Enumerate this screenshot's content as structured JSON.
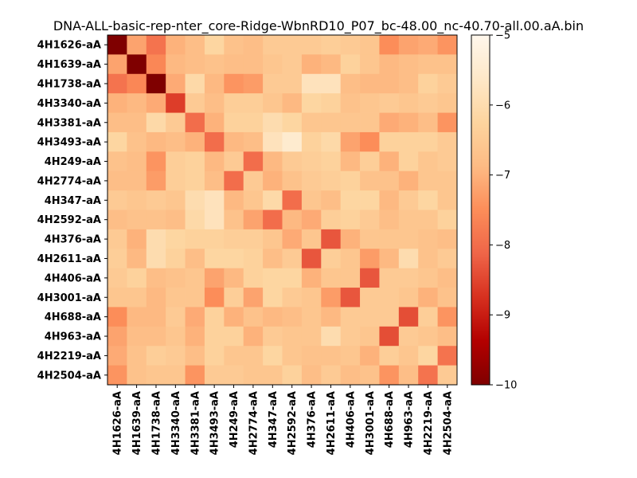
{
  "chart_data": {
    "type": "heatmap",
    "title": "DNA-ALL-basic-rep-nter_core-Ridge-WbnRD10_P07_bc-48.00_nc-40.70-all.00.aA.bin",
    "xlabel": "",
    "ylabel": "",
    "labels": [
      "4H1626-aA",
      "4H1639-aA",
      "4H1738-aA",
      "4H3340-aA",
      "4H3381-aA",
      "4H3493-aA",
      "4H249-aA",
      "4H2774-aA",
      "4H347-aA",
      "4H2592-aA",
      "4H376-aA",
      "4H2611-aA",
      "4H406-aA",
      "4H3001-aA",
      "4H688-aA",
      "4H963-aA",
      "4H2219-aA",
      "4H2504-aA"
    ],
    "colorbar": {
      "vmin": -10,
      "vmax": -5,
      "ticks": [
        -10,
        -9,
        -8,
        -7,
        -6,
        -5
      ],
      "colormap": "OrRd_r"
    },
    "values": [
      [
        -10.0,
        -7.2,
        -7.9,
        -7.0,
        -6.8,
        -6.2,
        -6.7,
        -6.8,
        -6.5,
        -6.5,
        -6.5,
        -6.4,
        -6.5,
        -6.6,
        -7.5,
        -7.2,
        -7.1,
        -7.4
      ],
      [
        -7.2,
        -10.0,
        -7.6,
        -6.9,
        -6.8,
        -6.7,
        -6.8,
        -6.8,
        -6.6,
        -6.5,
        -7.0,
        -6.9,
        -6.3,
        -6.6,
        -6.9,
        -6.8,
        -6.7,
        -6.7
      ],
      [
        -7.9,
        -7.6,
        -10.0,
        -7.1,
        -6.1,
        -6.9,
        -7.4,
        -7.3,
        -6.5,
        -6.5,
        -5.8,
        -5.8,
        -6.8,
        -6.9,
        -6.9,
        -6.8,
        -6.3,
        -6.5
      ],
      [
        -7.0,
        -6.9,
        -7.1,
        -8.6,
        -6.5,
        -6.8,
        -6.4,
        -6.4,
        -6.6,
        -6.9,
        -6.2,
        -6.3,
        -6.7,
        -6.6,
        -6.5,
        -6.6,
        -6.5,
        -6.6
      ],
      [
        -6.8,
        -6.8,
        -6.1,
        -6.5,
        -8.0,
        -7.0,
        -6.3,
        -6.3,
        -6.0,
        -6.2,
        -6.6,
        -6.6,
        -6.6,
        -6.6,
        -7.1,
        -7.0,
        -6.8,
        -7.4
      ],
      [
        -6.2,
        -6.7,
        -6.9,
        -6.8,
        -7.0,
        -8.0,
        -6.9,
        -6.8,
        -5.8,
        -5.5,
        -6.3,
        -6.1,
        -7.2,
        -7.5,
        -6.3,
        -6.3,
        -6.3,
        -6.5
      ],
      [
        -6.7,
        -6.8,
        -7.4,
        -6.4,
        -6.3,
        -6.9,
        -6.5,
        -8.0,
        -6.9,
        -6.5,
        -6.4,
        -6.3,
        -6.9,
        -6.4,
        -7.0,
        -6.3,
        -6.6,
        -6.5
      ],
      [
        -6.8,
        -6.8,
        -7.3,
        -6.4,
        -6.3,
        -6.8,
        -8.0,
        -6.5,
        -7.0,
        -6.7,
        -6.5,
        -6.4,
        -6.3,
        -6.7,
        -6.7,
        -7.0,
        -6.6,
        -6.6
      ],
      [
        -6.5,
        -6.6,
        -6.5,
        -6.6,
        -6.0,
        -5.8,
        -6.9,
        -6.6,
        -6.1,
        -8.0,
        -6.6,
        -6.8,
        -6.2,
        -6.2,
        -6.9,
        -6.5,
        -6.2,
        -6.6
      ],
      [
        -6.8,
        -6.7,
        -6.7,
        -6.8,
        -6.1,
        -5.8,
        -6.7,
        -7.2,
        -8.0,
        -6.9,
        -7.1,
        -6.4,
        -6.3,
        -6.5,
        -6.8,
        -6.6,
        -6.6,
        -6.3
      ],
      [
        -6.5,
        -7.0,
        -6.0,
        -6.2,
        -6.3,
        -6.3,
        -6.4,
        -6.4,
        -6.6,
        -7.1,
        -6.6,
        -8.3,
        -7.0,
        -6.6,
        -6.6,
        -6.6,
        -6.7,
        -6.8
      ],
      [
        -6.4,
        -6.9,
        -6.0,
        -6.3,
        -6.8,
        -6.2,
        -6.2,
        -6.3,
        -6.8,
        -6.5,
        -8.3,
        -6.4,
        -6.6,
        -7.3,
        -6.9,
        -6.0,
        -6.7,
        -6.5
      ],
      [
        -6.5,
        -6.3,
        -6.8,
        -6.7,
        -6.6,
        -7.2,
        -6.9,
        -6.3,
        -6.2,
        -6.2,
        -7.0,
        -6.6,
        -6.6,
        -8.3,
        -6.5,
        -6.5,
        -6.6,
        -6.8
      ],
      [
        -6.6,
        -6.6,
        -6.9,
        -6.6,
        -6.6,
        -7.5,
        -6.4,
        -7.2,
        -6.2,
        -6.5,
        -6.6,
        -7.3,
        -8.3,
        -6.5,
        -6.5,
        -6.6,
        -7.0,
        -6.7
      ],
      [
        -7.5,
        -6.9,
        -6.9,
        -6.5,
        -7.1,
        -6.3,
        -7.0,
        -6.7,
        -6.9,
        -6.8,
        -6.6,
        -6.9,
        -6.5,
        -6.5,
        -6.5,
        -8.4,
        -6.4,
        -7.4
      ],
      [
        -7.2,
        -6.8,
        -6.8,
        -6.6,
        -7.0,
        -6.3,
        -6.3,
        -7.0,
        -6.5,
        -6.6,
        -6.6,
        -6.0,
        -6.5,
        -6.6,
        -8.4,
        -6.5,
        -6.6,
        -6.8
      ],
      [
        -7.1,
        -6.7,
        -6.4,
        -6.5,
        -6.8,
        -6.3,
        -6.6,
        -6.6,
        -6.2,
        -6.6,
        -6.7,
        -6.7,
        -6.6,
        -7.0,
        -6.4,
        -6.6,
        -6.2,
        -7.9
      ],
      [
        -7.4,
        -6.7,
        -6.6,
        -6.6,
        -7.4,
        -6.5,
        -6.5,
        -6.6,
        -6.6,
        -6.3,
        -6.8,
        -6.5,
        -6.8,
        -6.7,
        -7.4,
        -6.8,
        -7.9,
        -6.5
      ]
    ]
  }
}
